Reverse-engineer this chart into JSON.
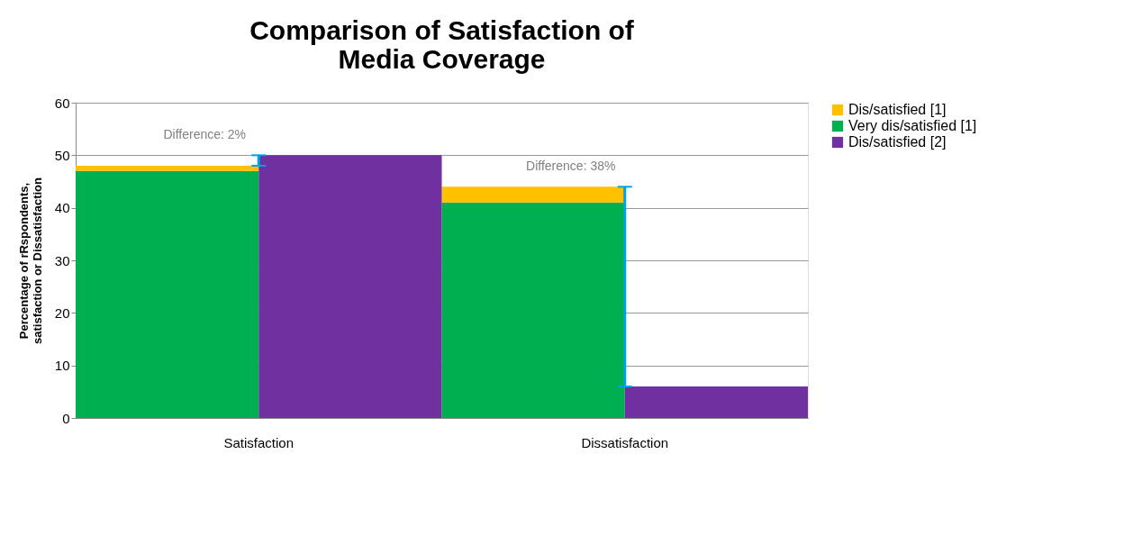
{
  "chart_data": {
    "type": "bar",
    "title": "Comparison of Satisfaction of\nMedia Coverage",
    "ylabel": "Percentage of rRspondents,\nsatisfaction  or Dissatisfaction",
    "categories": [
      "Satisfaction",
      null,
      "Dissatisfaction",
      null
    ],
    "stacked": true,
    "series": [
      {
        "name": "Very dis/satisfied [1]",
        "color": "#00b050",
        "values": [
          47,
          null,
          41,
          null
        ]
      },
      {
        "name": "Dis/satisfied [1]",
        "color": "#ffc000",
        "values": [
          1,
          null,
          3,
          null
        ]
      },
      {
        "name": "Dis/satisfied [2]",
        "color": "#7030a0",
        "values": [
          null,
          50,
          null,
          6
        ],
        "errors": [
          null,
          [
            48,
            50
          ],
          null,
          [
            6,
            44
          ]
        ]
      }
    ],
    "annotations": [
      "Difference: 2%",
      "Difference: 38%"
    ],
    "ylim": [
      0,
      60
    ],
    "yticks": [
      0,
      10,
      20,
      30,
      40,
      50,
      60
    ],
    "grid": "y",
    "legend": "right"
  }
}
